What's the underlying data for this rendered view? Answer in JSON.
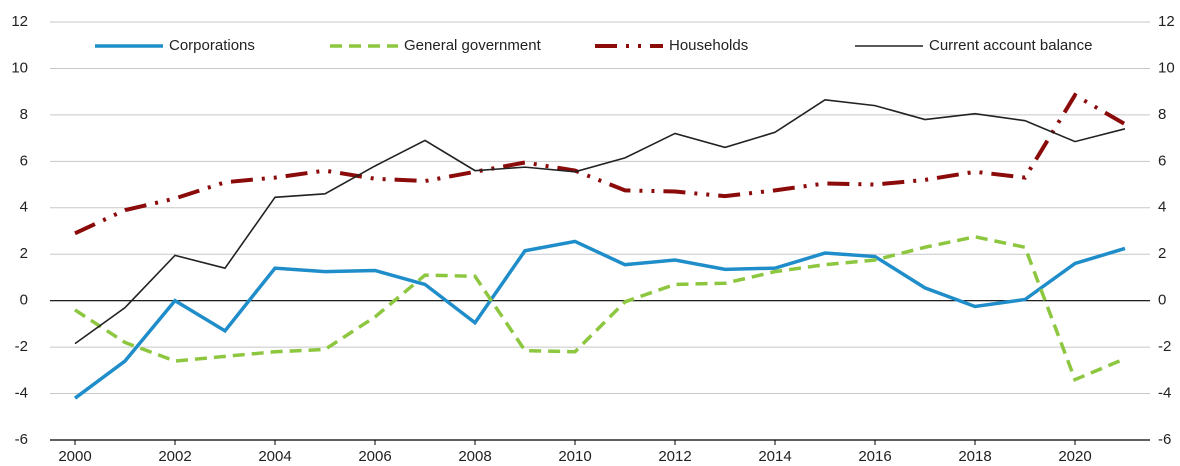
{
  "chart_data": {
    "type": "line",
    "x": [
      2000,
      2001,
      2002,
      2003,
      2004,
      2005,
      2006,
      2007,
      2008,
      2009,
      2010,
      2011,
      2012,
      2013,
      2014,
      2015,
      2016,
      2017,
      2018,
      2019,
      2020,
      2021
    ],
    "xlim": [
      1999.5,
      2021.5
    ],
    "xticks": [
      2000,
      2002,
      2004,
      2006,
      2008,
      2010,
      2012,
      2014,
      2016,
      2018,
      2020
    ],
    "ylim": [
      -6,
      12
    ],
    "yticks": [
      -6,
      -4,
      -2,
      0,
      2,
      4,
      6,
      8,
      10,
      12
    ],
    "y2lim": [
      -6,
      12
    ],
    "y2ticks": [
      -6,
      -4,
      -2,
      0,
      2,
      4,
      6,
      8,
      10,
      12
    ],
    "grid": true,
    "legend": "top",
    "series": [
      {
        "name": "Corporations",
        "color": "#1f8dc9",
        "style": "solid",
        "values": [
          -4.2,
          -2.6,
          0.0,
          -1.3,
          1.4,
          1.25,
          1.3,
          0.7,
          -0.95,
          2.15,
          2.55,
          1.55,
          1.75,
          1.35,
          1.4,
          2.05,
          1.9,
          0.55,
          -0.25,
          0.05,
          1.6,
          2.25
        ]
      },
      {
        "name": "General government",
        "color": "#8dc63f",
        "style": "dashed",
        "values": [
          -0.4,
          -1.8,
          -2.6,
          -2.4,
          -2.2,
          -2.1,
          -0.7,
          1.1,
          1.05,
          -2.15,
          -2.2,
          -0.05,
          0.7,
          0.75,
          1.25,
          1.55,
          1.75,
          2.3,
          2.75,
          2.3,
          -3.4,
          -2.5
        ]
      },
      {
        "name": "Households",
        "color": "#8b0a0a",
        "style": "dashdotdot",
        "values": [
          2.9,
          3.9,
          4.4,
          5.1,
          5.3,
          5.6,
          5.25,
          5.15,
          5.55,
          5.95,
          5.6,
          4.75,
          4.7,
          4.5,
          4.75,
          5.05,
          5.0,
          5.2,
          5.55,
          5.3,
          8.85,
          7.6
        ]
      },
      {
        "name": "Current account balance",
        "color": "#222222",
        "style": "thin",
        "values": [
          -1.85,
          -0.3,
          1.95,
          1.4,
          4.45,
          4.6,
          5.8,
          6.9,
          5.6,
          5.75,
          5.55,
          6.15,
          7.2,
          6.6,
          7.25,
          8.65,
          8.4,
          7.8,
          8.05,
          7.75,
          6.85,
          7.4
        ]
      }
    ]
  }
}
